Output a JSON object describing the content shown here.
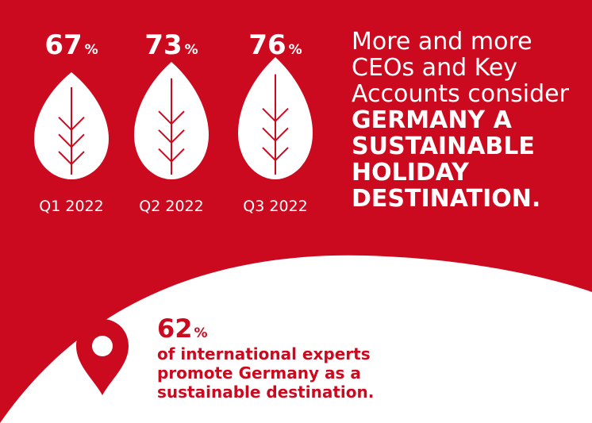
{
  "colors": {
    "brand_red": "#cc0a1f",
    "white": "#ffffff"
  },
  "chart_data": {
    "type": "bar",
    "categories": [
      "Q1 2022",
      "Q2 2022",
      "Q3 2022"
    ],
    "values": [
      67,
      73,
      76
    ],
    "unit": "%",
    "ylim": [
      0,
      100
    ]
  },
  "headline": {
    "regular": "More and more CEOs and Key Accounts consider",
    "bold": "GERMANY A SUSTAINABLE HOLIDAY DESTINATION."
  },
  "experts": {
    "value": "62",
    "unit": "%",
    "text": "of international experts promote Germany as a sustainable destination."
  },
  "icons": {
    "leaf": "leaf-icon",
    "pin": "location-pin-icon"
  }
}
